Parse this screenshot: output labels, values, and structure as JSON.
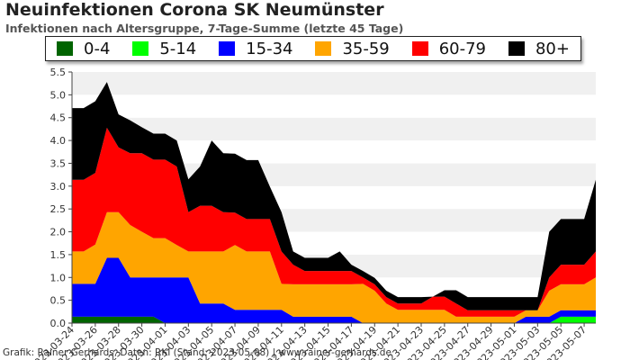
{
  "title": "Neuinfektionen Corona SK Neumünster",
  "subtitle": "Infektionen nach Altersgruppe, 7-Tage-Summe (letzte 45 Tage)",
  "footer": "Grafik: Rainer Gerhards, Daten: RKI (Stand: 2023-05-08) | www.rainer-gerhards.de",
  "legend": [
    {
      "label": "0-4",
      "color": "#006400"
    },
    {
      "label": "5-14",
      "color": "#00ff00"
    },
    {
      "label": "15-34",
      "color": "#0000ff"
    },
    {
      "label": "35-59",
      "color": "#ffa500"
    },
    {
      "label": "60-79",
      "color": "#ff0000"
    },
    {
      "label": "80+",
      "color": "#000000"
    }
  ],
  "chart_data": {
    "type": "area",
    "stacked": true,
    "grid": true,
    "ylim": [
      0,
      5.5
    ],
    "yticks": [
      "0.0",
      "0.5",
      "1.0",
      "1.5",
      "2.0",
      "2.5",
      "3.0",
      "3.5",
      "4.0",
      "4.5",
      "5.0",
      "5.5"
    ],
    "x": [
      "2023-03-24",
      "2023-03-25",
      "2023-03-26",
      "2023-03-27",
      "2023-03-28",
      "2023-03-29",
      "2023-03-30",
      "2023-03-31",
      "2023-04-01",
      "2023-04-02",
      "2023-04-03",
      "2023-04-04",
      "2023-04-05",
      "2023-04-06",
      "2023-04-07",
      "2023-04-08",
      "2023-04-09",
      "2023-04-10",
      "2023-04-11",
      "2023-04-12",
      "2023-04-13",
      "2023-04-14",
      "2023-04-15",
      "2023-04-16",
      "2023-04-17",
      "2023-04-18",
      "2023-04-19",
      "2023-04-20",
      "2023-04-21",
      "2023-04-22",
      "2023-04-23",
      "2023-04-24",
      "2023-04-25",
      "2023-04-26",
      "2023-04-27",
      "2023-04-28",
      "2023-04-29",
      "2023-04-30",
      "2023-05-01",
      "2023-05-02",
      "2023-05-03",
      "2023-05-04",
      "2023-05-05",
      "2023-05-06",
      "2023-05-07",
      "2023-05-08"
    ],
    "xtick_labels": [
      "2023-03-24",
      "2023-03-26",
      "2023-03-28",
      "2023-03-30",
      "2023-04-01",
      "2023-04-03",
      "2023-04-05",
      "2023-04-07",
      "2023-04-09",
      "2023-04-11",
      "2023-04-13",
      "2023-04-15",
      "2023-04-17",
      "2023-04-19",
      "2023-04-21",
      "2023-04-23",
      "2023-04-25",
      "2023-04-27",
      "2023-04-29",
      "2023-05-01",
      "2023-05-03",
      "2023-05-05",
      "2023-05-07"
    ],
    "series": [
      {
        "name": "0-4",
        "color": "#006400",
        "values": [
          0.14,
          0.14,
          0.14,
          0.14,
          0.14,
          0.14,
          0.14,
          0.14,
          0,
          0,
          0,
          0,
          0,
          0,
          0,
          0,
          0,
          0,
          0,
          0,
          0,
          0,
          0,
          0,
          0,
          0,
          0,
          0,
          0,
          0,
          0,
          0,
          0,
          0,
          0,
          0,
          0,
          0,
          0,
          0,
          0,
          0,
          0,
          0,
          0,
          0
        ]
      },
      {
        "name": "5-14",
        "color": "#00ff00",
        "values": [
          0,
          0,
          0,
          0,
          0,
          0,
          0,
          0,
          0,
          0,
          0,
          0,
          0,
          0,
          0,
          0,
          0,
          0,
          0,
          0,
          0,
          0,
          0,
          0,
          0,
          0,
          0,
          0,
          0,
          0,
          0,
          0,
          0,
          0,
          0,
          0,
          0,
          0,
          0,
          0,
          0,
          0,
          0.14,
          0.14,
          0.14,
          0.14
        ]
      },
      {
        "name": "15-34",
        "color": "#0000ff",
        "values": [
          0.72,
          0.72,
          0.72,
          1.29,
          1.29,
          0.86,
          0.86,
          0.86,
          1.0,
          1.0,
          1.0,
          0.43,
          0.43,
          0.43,
          0.29,
          0.29,
          0.29,
          0.29,
          0.29,
          0.14,
          0.14,
          0.14,
          0.14,
          0.14,
          0.14,
          0,
          0,
          0,
          0,
          0,
          0,
          0,
          0,
          0,
          0,
          0,
          0,
          0,
          0,
          0.14,
          0.14,
          0.14,
          0.14,
          0.14,
          0.14,
          0.14
        ]
      },
      {
        "name": "35-59",
        "color": "#ffa500",
        "values": [
          0.71,
          0.71,
          0.86,
          1.0,
          1.0,
          1.15,
          1.0,
          0.86,
          0.86,
          0.71,
          0.57,
          1.14,
          1.14,
          1.14,
          1.42,
          1.28,
          1.28,
          1.28,
          0.57,
          0.71,
          0.71,
          0.71,
          0.71,
          0.71,
          0.71,
          0.86,
          0.71,
          0.43,
          0.29,
          0.29,
          0.29,
          0.29,
          0.29,
          0.14,
          0.14,
          0.14,
          0.14,
          0.14,
          0.14,
          0.14,
          0.14,
          0.57,
          0.57,
          0.57,
          0.57,
          0.72
        ]
      },
      {
        "name": "60-79",
        "color": "#ff0000",
        "values": [
          1.57,
          1.57,
          1.57,
          1.85,
          1.42,
          1.57,
          1.72,
          1.72,
          1.72,
          1.72,
          0.86,
          1.0,
          1.0,
          0.86,
          0.71,
          0.71,
          0.71,
          0.71,
          0.71,
          0.43,
          0.29,
          0.29,
          0.29,
          0.29,
          0.29,
          0.14,
          0.14,
          0.14,
          0.14,
          0.14,
          0.14,
          0.29,
          0.29,
          0.29,
          0.14,
          0.14,
          0.14,
          0.14,
          0.14,
          0,
          0,
          0.29,
          0.43,
          0.43,
          0.43,
          0.57
        ]
      },
      {
        "name": "80+",
        "color": "#000000",
        "values": [
          1.57,
          1.57,
          1.57,
          1.0,
          0.72,
          0.72,
          0.57,
          0.57,
          0.57,
          0.57,
          0.72,
          0.86,
          1.43,
          1.29,
          1.29,
          1.29,
          1.29,
          0.71,
          0.86,
          0.29,
          0.29,
          0.29,
          0.29,
          0.43,
          0.14,
          0.14,
          0.14,
          0.14,
          0.14,
          0.14,
          0.14,
          0,
          0.14,
          0.29,
          0.29,
          0.29,
          0.29,
          0.29,
          0.29,
          0.29,
          0.29,
          1.0,
          1.0,
          1.0,
          1.0,
          1.57
        ]
      }
    ]
  }
}
